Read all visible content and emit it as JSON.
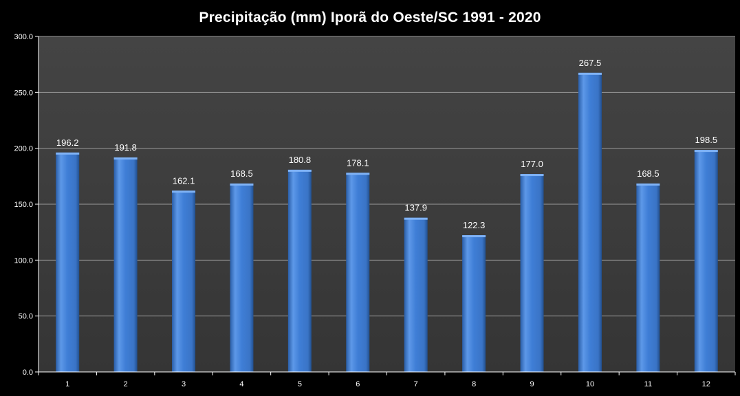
{
  "chart_data": {
    "type": "bar",
    "title": "Precipitação (mm) Iporã do Oeste/SC 1991 - 2020",
    "xlabel": "",
    "ylabel": "",
    "categories": [
      "1",
      "2",
      "3",
      "4",
      "5",
      "6",
      "7",
      "8",
      "9",
      "10",
      "11",
      "12"
    ],
    "values": [
      196.2,
      191.8,
      162.1,
      168.5,
      180.8,
      178.1,
      137.9,
      122.3,
      177.0,
      267.5,
      168.5,
      198.5
    ],
    "value_labels": [
      "196.2",
      "191.8",
      "162.1",
      "168.5",
      "180.8",
      "178.1",
      "137.9",
      "122.3",
      "177.0",
      "267.5",
      "168.5",
      "198.5"
    ],
    "ylim": [
      0,
      300
    ],
    "yticks": [
      0,
      50,
      100,
      150,
      200,
      250,
      300
    ],
    "ytick_labels": [
      "0.0",
      "50.0",
      "100.0",
      "150.0",
      "200.0",
      "250.0",
      "300.0"
    ],
    "grid": true,
    "legend": "none",
    "colors": {
      "background": "#000000",
      "plot_area": "#3d3d3d",
      "gridline": "#9a9a9a",
      "bar": "#3f7ed6",
      "bar_light": "#6aa3ef",
      "bar_dark": "#2a5ea8",
      "text": "#ffffff"
    }
  }
}
